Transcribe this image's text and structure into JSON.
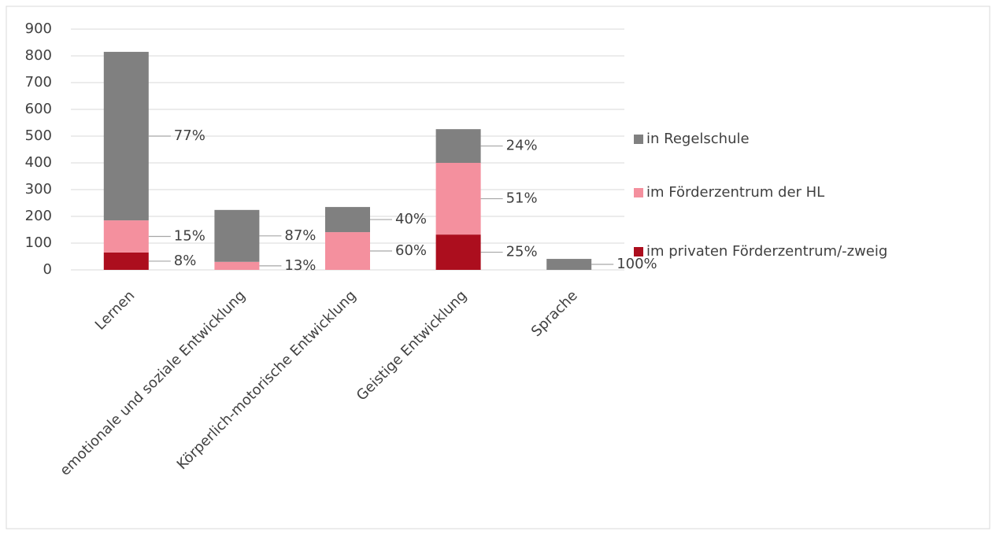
{
  "chart_data": {
    "type": "stacked_bar",
    "categories": [
      "Lernen",
      "emotionale und soziale Entwicklung",
      "Körperlich-motorische Entwicklung",
      "Geistige Entwicklung",
      "Sprache"
    ],
    "series": [
      {
        "name": "im privaten Förderzentrum/-zweig",
        "color": "#ac0e1e",
        "values": [
          65,
          0,
          0,
          132,
          0
        ],
        "data_labels": [
          "8%",
          null,
          null,
          "25%",
          null
        ]
      },
      {
        "name": "im Förderzentrum der HL",
        "color": "#f4909e",
        "values": [
          120,
          30,
          141,
          268,
          0
        ],
        "data_labels": [
          "15%",
          "13%",
          "60%",
          "51%",
          null
        ]
      },
      {
        "name": "in Regelschule",
        "color": "#808080",
        "values": [
          630,
          194,
          94,
          126,
          41
        ],
        "data_labels": [
          "77%",
          "87%",
          "40%",
          "24%",
          "100%"
        ]
      }
    ],
    "ylim": [
      0,
      900
    ],
    "yticks": [
      0,
      100,
      200,
      300,
      400,
      500,
      600,
      700,
      800,
      900
    ],
    "grid": true,
    "legend": "right"
  }
}
